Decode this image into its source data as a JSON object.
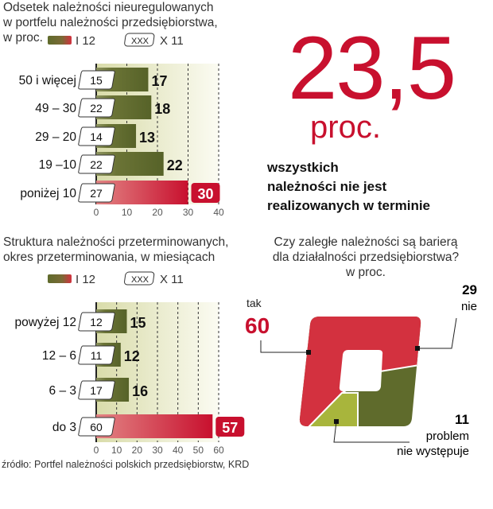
{
  "legend": {
    "current_label": "I 12",
    "previous_box": "XXX",
    "previous_label": "X 11"
  },
  "colors": {
    "accent_red": "#c8102e",
    "olive": "#5f6b2c",
    "light_green": "#a8b53c"
  },
  "headline": {
    "value": "23,5",
    "unit": "proc.",
    "lines": [
      "wszystkich",
      "należności nie jest",
      "realizowanych w terminie"
    ]
  },
  "source": "źródło: Portfel należności polskich przedsiębiorstw, KRD",
  "chart_data": [
    {
      "type": "bar",
      "title_lines": [
        "Odsetek należności nieuregulowanych",
        "w portfelu należności przedsiębiorstwa,",
        "w proc."
      ],
      "categories": [
        "50 i więcej",
        "49 – 30",
        "29 – 20",
        "19 –10",
        "poniżej 10"
      ],
      "series": [
        {
          "name": "I 12",
          "values": [
            17,
            18,
            13,
            22,
            30
          ]
        },
        {
          "name": "X 11",
          "values": [
            15,
            22,
            14,
            22,
            27
          ]
        }
      ],
      "xlim": [
        0,
        40
      ],
      "xticks": [
        0,
        10,
        20,
        30,
        40
      ],
      "grid": true,
      "highlight_index": 4
    },
    {
      "type": "bar",
      "title_lines": [
        "Struktura należności przeterminowanych,",
        "okres przeterminowania, w miesiącach"
      ],
      "categories": [
        "powyżej 12",
        "12 – 6",
        "6 – 3",
        "do 3"
      ],
      "series": [
        {
          "name": "I 12",
          "values": [
            15,
            12,
            16,
            57
          ]
        },
        {
          "name": "X 11",
          "values": [
            12,
            11,
            17,
            60
          ]
        }
      ],
      "xlim": [
        0,
        60
      ],
      "xticks": [
        0,
        10,
        20,
        30,
        40,
        50,
        60
      ],
      "grid": true,
      "highlight_index": 3
    },
    {
      "type": "pie",
      "title_lines": [
        "Czy zaległe należności są barierą",
        "dla działalności przedsiębiorstwa?",
        "w proc."
      ],
      "slices": [
        {
          "label": "tak",
          "value": 60,
          "color": "#d3313f"
        },
        {
          "label": "nie",
          "value": 29,
          "color": "#5f6b2c"
        },
        {
          "label": "problem nie występuje",
          "value": 11,
          "color": "#a8b53c"
        }
      ]
    }
  ]
}
